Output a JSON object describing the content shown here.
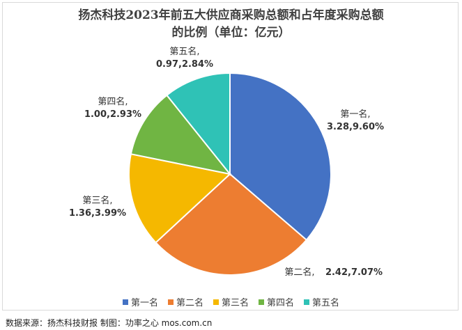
{
  "chart_data": {
    "type": "pie",
    "title_line1": "扬杰科技2023年前五大供应商采购总额和占年度采购总额",
    "title_line2": "的比例（单位：亿元）",
    "categories": [
      "第一名",
      "第二名",
      "第三名",
      "第四名",
      "第五名"
    ],
    "values": [
      3.28,
      2.42,
      1.36,
      1.0,
      0.97
    ],
    "percents": [
      "9.60%",
      "7.07%",
      "3.99%",
      "2.93%",
      "2.84%"
    ],
    "labels_line1": [
      "第一名,",
      "第二名,",
      "第三名,",
      "第四名,",
      "第五名,"
    ],
    "labels_value": [
      "3.28,9.60%",
      "2.42,7.07%",
      "1.36,3.99%",
      "1.00,2.93%",
      "0.97,2.84%"
    ],
    "colors": [
      "#4472c4",
      "#ed7d31",
      "#f5b800",
      "#70b543",
      "#2fc2b6"
    ],
    "legend_position": "bottom"
  },
  "footer": "数据来源：扬杰科技财报  制图：功率之心  mos.com.cn"
}
